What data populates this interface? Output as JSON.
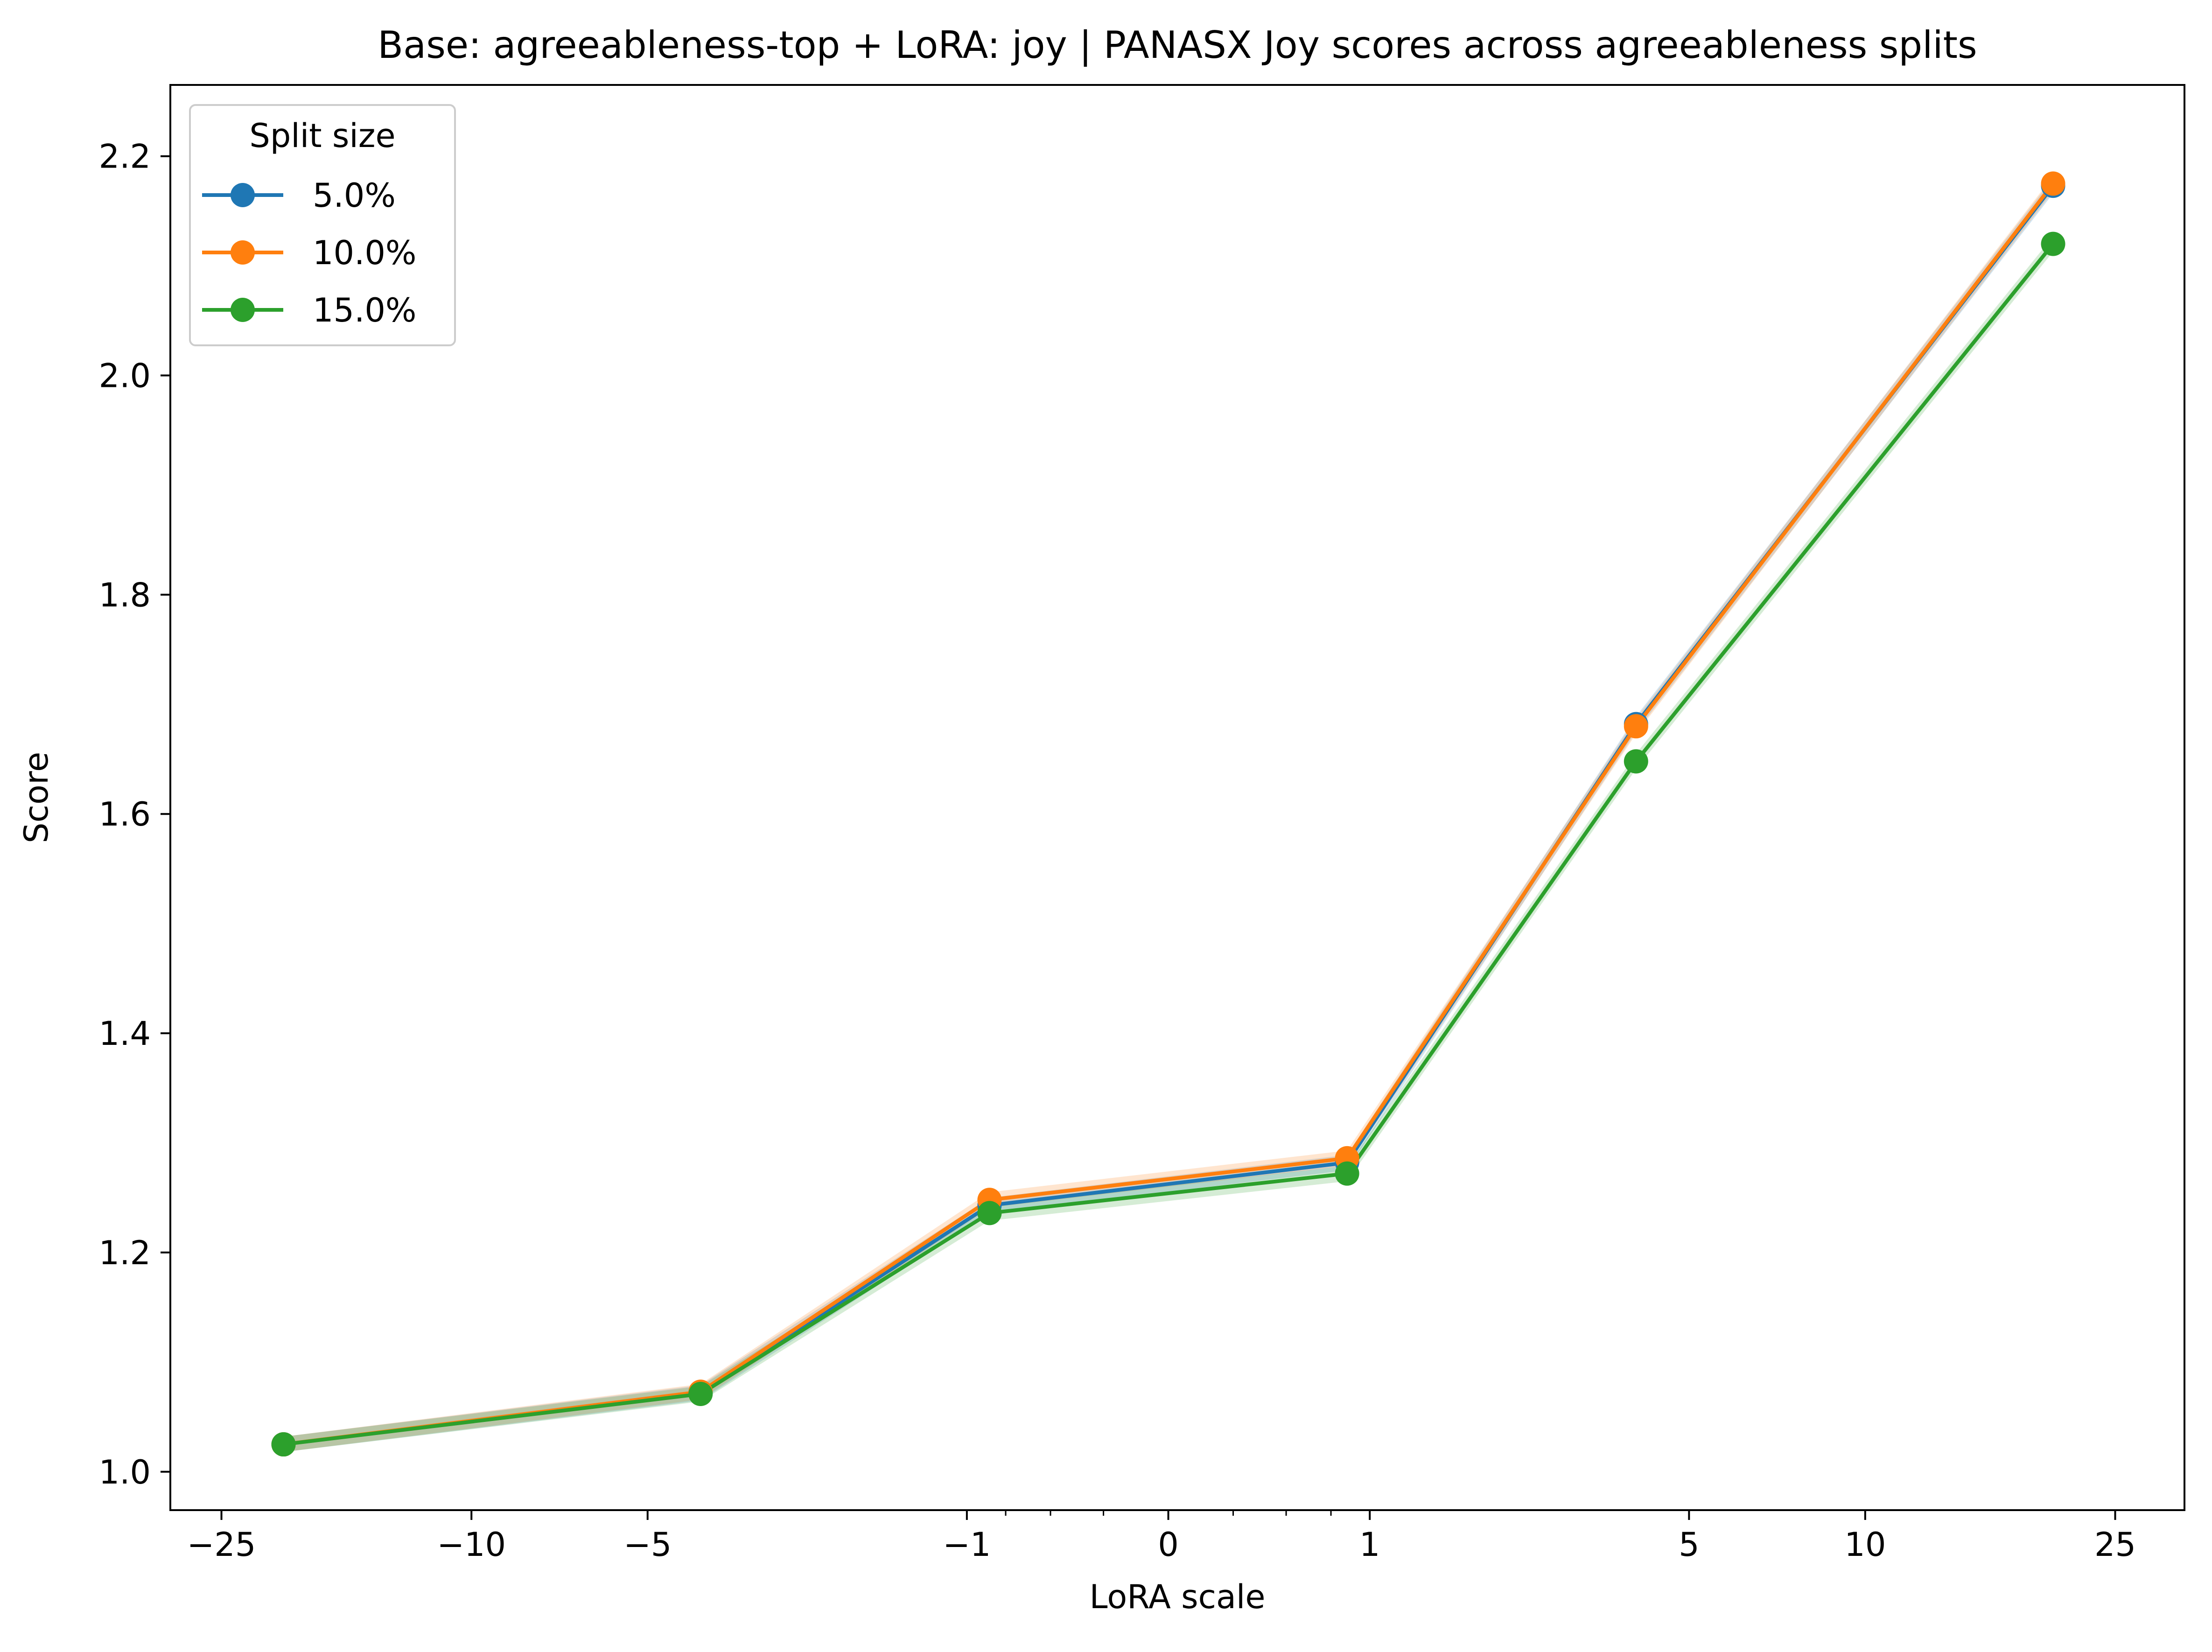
{
  "chart_data": {
    "type": "line",
    "title": "Base: agreeableness-top + LoRA: joy | PANASX Joy scores across agreeableness splits",
    "xlabel": "LoRA scale",
    "ylabel": "Score",
    "x_scale": "symlog",
    "x_ticks": [
      -25,
      -10,
      -5,
      -1,
      0,
      1,
      5,
      10,
      25
    ],
    "x_tick_labels": [
      "−25",
      "−10",
      "−5",
      "−1",
      "0",
      "1",
      "5",
      "10",
      "25"
    ],
    "x_minor_ticks": [
      -0.75,
      -0.5,
      -0.25,
      0.25,
      0.5,
      0.75
    ],
    "xlim": [
      -30,
      32
    ],
    "ylim": [
      0.965,
      2.265
    ],
    "y_ticks": [
      1.0,
      1.2,
      1.4,
      1.6,
      1.8,
      2.0,
      2.2
    ],
    "y_tick_labels": [
      "1.0",
      "1.2",
      "1.4",
      "1.6",
      "1.8",
      "2.0",
      "2.2"
    ],
    "grid": false,
    "legend": {
      "title": "Split size",
      "position": "top-left"
    },
    "x": [
      -20,
      -4,
      -0.85,
      0.85,
      4,
      20
    ],
    "series": [
      {
        "name": "5.0%",
        "color": "#1f77b4",
        "values": [
          1.025,
          1.072,
          1.243,
          1.282,
          1.682,
          2.173
        ],
        "band": 0.007
      },
      {
        "name": "10.0%",
        "color": "#ff7f0e",
        "values": [
          1.025,
          1.073,
          1.248,
          1.286,
          1.68,
          2.175
        ],
        "band": 0.007
      },
      {
        "name": "15.0%",
        "color": "#2ca02c",
        "values": [
          1.025,
          1.071,
          1.236,
          1.272,
          1.648,
          2.12
        ],
        "band": 0.007
      }
    ]
  }
}
